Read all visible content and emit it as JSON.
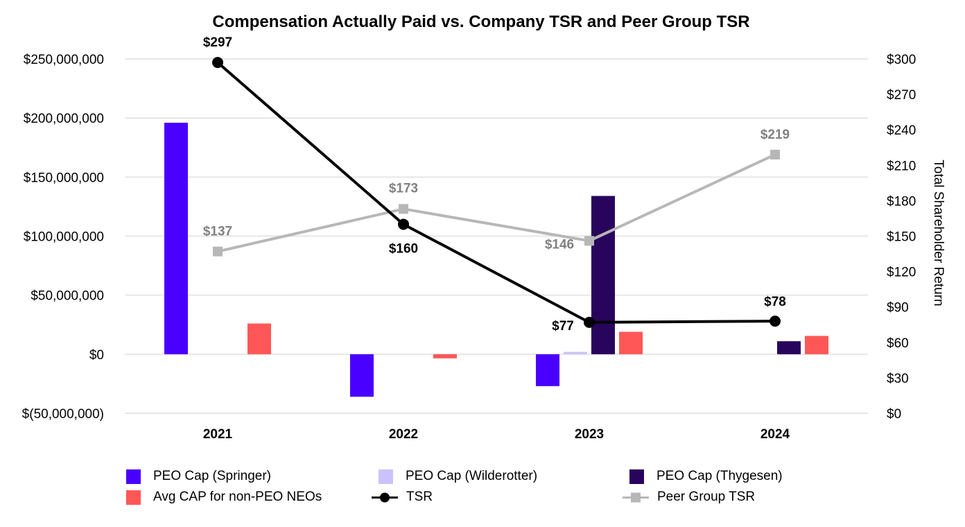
{
  "chart_data": {
    "type": "bar",
    "title": "Compensation Actually Paid vs. Company TSR and Peer Group TSR",
    "categories": [
      "2021",
      "2022",
      "2023",
      "2024"
    ],
    "y_left": {
      "min": -50000000,
      "max": 250000000,
      "ticks": [
        250000000,
        200000000,
        150000000,
        100000000,
        50000000,
        0,
        -50000000
      ],
      "tick_labels": [
        "$250,000,000",
        "$200,000,000",
        "$150,000,000",
        "$100,000,000",
        "$50,000,000",
        "$0",
        "$(50,000,000)"
      ]
    },
    "y_right": {
      "label": "Total Shareholder Return",
      "min": 0,
      "max": 300,
      "ticks": [
        300,
        270,
        240,
        210,
        180,
        150,
        120,
        90,
        60,
        30,
        0
      ],
      "tick_labels": [
        "$300",
        "$270",
        "$240",
        "$210",
        "$180",
        "$150",
        "$120",
        "$90",
        "$60",
        "$30",
        "$0"
      ]
    },
    "bar_series": [
      {
        "name": "PEO Cap (Springer)",
        "color": "#4a00ff",
        "values": [
          196000000,
          -36000000,
          -27000000,
          null
        ]
      },
      {
        "name": "PEO Cap (Wilderotter)",
        "color": "#cbc2fb",
        "values": [
          null,
          null,
          2000000,
          null
        ]
      },
      {
        "name": "PEO Cap (Thygesen)",
        "color": "#28045c",
        "values": [
          null,
          null,
          134000000,
          11000000
        ]
      },
      {
        "name": "Avg CAP for non-PEO NEOs",
        "color": "#ff5757",
        "values": [
          26000000,
          -3500000,
          19000000,
          15500000
        ]
      }
    ],
    "line_series": [
      {
        "name": "TSR",
        "color": "#000000",
        "marker": "circle",
        "values": [
          297,
          160,
          77,
          78
        ],
        "labels": [
          "$297",
          "$160",
          "$77",
          "$78"
        ]
      },
      {
        "name": "Peer Group TSR",
        "color": "#b7b7b7",
        "marker": "square",
        "values": [
          137,
          173,
          146,
          219
        ],
        "labels": [
          "$137",
          "$173",
          "$146",
          "$219"
        ]
      }
    ],
    "legend": [
      {
        "label": "PEO Cap (Springer)",
        "kind": "bar",
        "color": "#4a00ff"
      },
      {
        "label": "PEO Cap (Wilderotter)",
        "kind": "bar",
        "color": "#cbc2fb"
      },
      {
        "label": "PEO Cap (Thygesen)",
        "kind": "bar",
        "color": "#28045c"
      },
      {
        "label": "Avg CAP for non-PEO NEOs",
        "kind": "bar",
        "color": "#ff5757"
      },
      {
        "label": "TSR",
        "kind": "line-circle",
        "color": "#000000"
      },
      {
        "label": "Peer Group TSR",
        "kind": "line-square",
        "color": "#b7b7b7"
      }
    ]
  }
}
